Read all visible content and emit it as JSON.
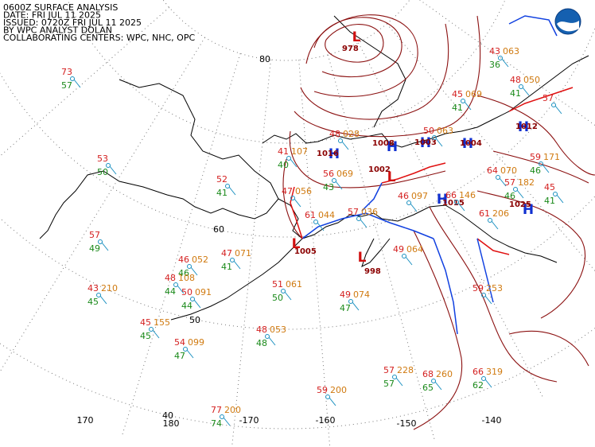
{
  "header": {
    "lines": [
      "0600Z SURFACE ANALYSIS",
      "DATE: FRI JUL 11 2025",
      "ISSUED: 0720Z FRI JUL 11 2025",
      "BY WPC ANALYST DOLAN",
      "COLLABORATING CENTERS: WPC, NHC, OPC"
    ]
  },
  "grid_labels": [
    "80",
    "60",
    "50",
    "40",
    "170",
    "180",
    "-170",
    "-160",
    "-150",
    "-140"
  ],
  "pressure_centers": [
    {
      "symbol": "L",
      "pressure": "978"
    },
    {
      "symbol": "H",
      "pressure": "1016"
    },
    {
      "symbol": "H",
      "pressure": "1008"
    },
    {
      "symbol": "H",
      "pressure": "1003"
    },
    {
      "symbol": "L",
      "pressure": "1002"
    },
    {
      "symbol": "H",
      "pressure": "1004"
    },
    {
      "symbol": "H",
      "pressure": "1015"
    },
    {
      "symbol": "H",
      "pressure": "1025"
    },
    {
      "symbol": "L",
      "pressure": "1005"
    },
    {
      "symbol": "L",
      "pressure": "998"
    },
    {
      "symbol": "H",
      "pressure": "1012"
    }
  ],
  "stations": [
    {
      "temperature": 73,
      "dewpoint": 57
    },
    {
      "temperature": 53,
      "dewpoint": 50
    },
    {
      "temperature": 52,
      "dewpoint": 41
    },
    {
      "temperature": 57,
      "dewpoint": 49
    },
    {
      "temperature": 46,
      "pressure": "052",
      "dewpoint": 46
    },
    {
      "temperature": 48,
      "pressure": "108",
      "dewpoint": 44
    },
    {
      "temperature": 43,
      "pressure": "210",
      "dewpoint": 45
    },
    {
      "temperature": 50,
      "pressure": "091",
      "dewpoint": 44
    },
    {
      "temperature": 47,
      "pressure": "071",
      "dewpoint": 41
    },
    {
      "temperature": 45,
      "pressure": "155",
      "dewpoint": 45
    },
    {
      "temperature": 54,
      "pressure": "099",
      "dewpoint": 47
    },
    {
      "temperature": 48,
      "pressure": "053",
      "dewpoint": 48
    },
    {
      "temperature": 51,
      "pressure": "061",
      "dewpoint": 50
    },
    {
      "temperature": 49,
      "pressure": "074",
      "dewpoint": 47
    },
    {
      "temperature": 77,
      "pressure": "200",
      "dewpoint": 74
    },
    {
      "temperature": 59,
      "pressure": "200"
    },
    {
      "temperature": 57,
      "pressure": "228",
      "dewpoint": 57
    },
    {
      "temperature": 68,
      "pressure": "260",
      "dewpoint": 65
    },
    {
      "temperature": 66,
      "pressure": "319",
      "dewpoint": 62
    },
    {
      "temperature": 59,
      "pressure": "253"
    },
    {
      "temperature": 61,
      "pressure": "206"
    },
    {
      "temperature": 57,
      "pressure": "182",
      "dewpoint": 46
    },
    {
      "temperature": 50,
      "pressure": "063"
    },
    {
      "temperature": 45,
      "pressure": "069",
      "dewpoint": 41
    },
    {
      "temperature": 43,
      "pressure": "063",
      "dewpoint": 36
    },
    {
      "temperature": 48,
      "pressure": "050",
      "dewpoint": 41
    },
    {
      "temperature": 57
    },
    {
      "temperature": 59,
      "pressure": "171",
      "dewpoint": 46
    },
    {
      "temperature": 45,
      "dewpoint": 41
    },
    {
      "temperature": 41,
      "pressure": "107",
      "dewpoint": 40
    },
    {
      "temperature": 48,
      "pressure": "028"
    },
    {
      "temperature": 56,
      "pressure": "069",
      "dewpoint": 43
    },
    {
      "temperature": 47,
      "pressure": "056"
    },
    {
      "temperature": 57,
      "pressure": "036"
    },
    {
      "temperature": 61,
      "pressure": "044"
    },
    {
      "temperature": 49,
      "pressure": "064"
    },
    {
      "temperature": 46,
      "pressure": "097"
    },
    {
      "temperature": 66,
      "pressure": "146"
    },
    {
      "temperature": 64,
      "pressure": "070"
    }
  ]
}
